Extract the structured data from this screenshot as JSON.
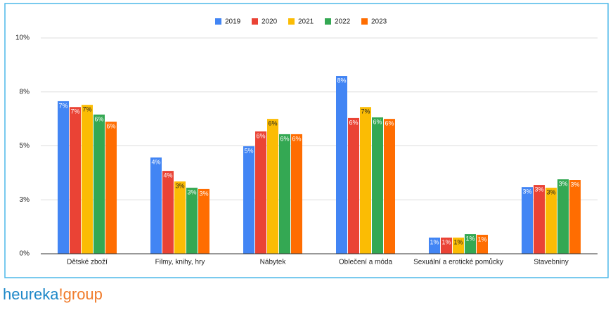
{
  "chart_data": {
    "type": "bar",
    "categories": [
      "Dětské zboží",
      "Filmy, knihy, hry",
      "Nábytek",
      "Oblečení a móda",
      "Sexuální a erotické pomůcky",
      "Stavebniny"
    ],
    "series": [
      {
        "name": "2019",
        "color": "#4285f4",
        "values": [
          7.07,
          4.46,
          4.98,
          8.24,
          0.75,
          3.09
        ],
        "value_labels": [
          "7%",
          "4%",
          "5%",
          "8%",
          "1%",
          "3%"
        ]
      },
      {
        "name": "2020",
        "color": "#ea4335",
        "values": [
          6.8,
          3.84,
          5.67,
          6.29,
          0.75,
          3.19
        ],
        "value_labels": [
          "7%",
          "4%",
          "6%",
          "6%",
          "1%",
          "3%"
        ]
      },
      {
        "name": "2021",
        "color": "#fbbc04",
        "values": [
          6.9,
          3.35,
          6.25,
          6.8,
          0.75,
          3.06
        ],
        "value_labels": [
          "7%",
          "3%",
          "6%",
          "7%",
          "1%",
          "3%"
        ]
      },
      {
        "name": "2022",
        "color": "#34a853",
        "values": [
          6.45,
          3.06,
          5.54,
          6.32,
          0.91,
          3.45
        ],
        "value_labels": [
          "6%",
          "3%",
          "6%",
          "6%",
          "1%",
          "3%"
        ]
      },
      {
        "name": "2023",
        "color": "#ff6d01",
        "values": [
          6.12,
          3.0,
          5.54,
          6.25,
          0.88,
          3.42
        ],
        "value_labels": [
          "6%",
          "3%",
          "6%",
          "6%",
          "1%",
          "3%"
        ]
      }
    ],
    "ylim": [
      0,
      10
    ],
    "yticks": [
      {
        "value": 0,
        "label": "0%"
      },
      {
        "value": 2.5,
        "label": "3%"
      },
      {
        "value": 5,
        "label": "5%"
      },
      {
        "value": 7.5,
        "label": "8%"
      },
      {
        "value": 10,
        "label": "10%"
      }
    ],
    "grid": true,
    "legend": "top"
  },
  "logo": {
    "brand": "heureka",
    "suffix": "!group"
  }
}
